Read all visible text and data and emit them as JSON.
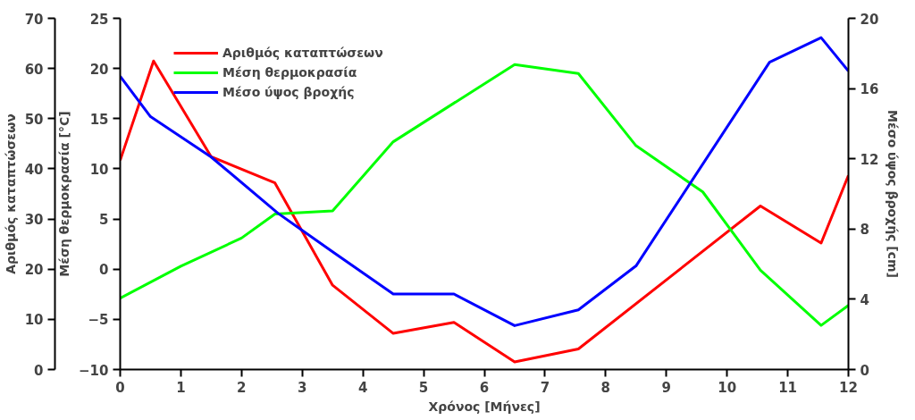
{
  "chart_data": {
    "type": "line",
    "xlabel": "Χρόνος [Μήνες]",
    "ylabel": "Μέση θερμοκρασία [°C]",
    "y2label": "Μέσο ύψος βροχής [cm]",
    "y3label": "Αριθμός καταπτώσεων",
    "xlim": [
      0,
      12
    ],
    "xticks": [
      0,
      1,
      2,
      3,
      4,
      5,
      6,
      7,
      8,
      9,
      10,
      11,
      12
    ],
    "ylim": [
      -10,
      25
    ],
    "yticks": [
      -10,
      -5,
      0,
      5,
      10,
      15,
      20,
      25
    ],
    "y2lim": [
      0,
      20
    ],
    "y2ticks": [
      0,
      4,
      8,
      12,
      16,
      20
    ],
    "y3lim": [
      0,
      70
    ],
    "y3ticks": [
      0,
      10,
      20,
      30,
      40,
      50,
      60,
      70
    ],
    "grid": false,
    "legend": "top left",
    "marker": "none",
    "line_style": "solid",
    "series": [
      {
        "name": "Αριθμός καταπτώσεων",
        "color": "#ff0000",
        "axis": "y3",
        "x": [
          0,
          0.55,
          1.5,
          2.55,
          3.5,
          4.5,
          5.5,
          6.5,
          7.55,
          10.55,
          11.55,
          12
        ],
        "values": [
          41.7,
          61.5,
          42.4,
          37.2,
          16.8,
          7.2,
          9.4,
          1.5,
          4.1,
          32.6,
          25.2,
          38.7
        ]
      },
      {
        "name": "Μέση θερμοκρασία",
        "color": "#00ff00",
        "axis": "y",
        "x": [
          0,
          1,
          2,
          2.55,
          3.5,
          4.5,
          6.5,
          7.55,
          8.5,
          9.6,
          10.55,
          11.55,
          12
        ],
        "values": [
          -2.9,
          0.3,
          3.1,
          5.5,
          5.8,
          12.7,
          20.4,
          19.5,
          12.3,
          7.7,
          -0.1,
          -5.6,
          -3.6
        ]
      },
      {
        "name": "Μέσο ύψος βροχής",
        "color": "#0000ff",
        "axis": "y2",
        "x": [
          0,
          0.5,
          1.5,
          2.6,
          3.5,
          4.5,
          5.5,
          6.5,
          7.55,
          8.5,
          10.7,
          11.55,
          12
        ],
        "values": [
          16.7,
          14.4,
          12.1,
          8.9,
          6.7,
          4.3,
          4.3,
          2.5,
          3.4,
          5.9,
          17.5,
          18.9,
          17.0
        ]
      }
    ]
  }
}
